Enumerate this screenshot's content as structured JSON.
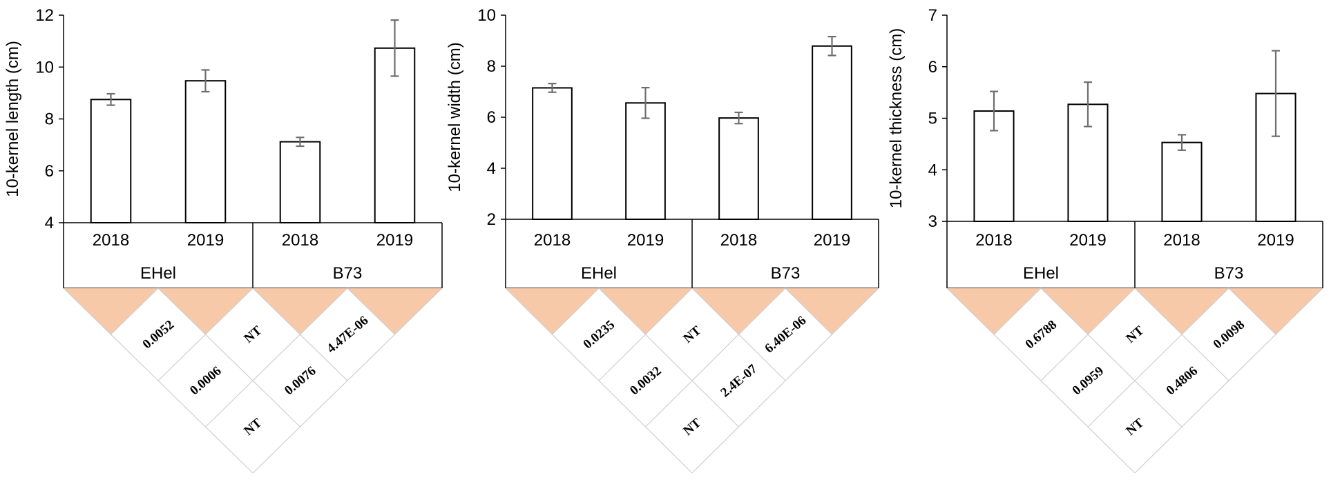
{
  "chart_data": [
    {
      "type": "bar",
      "title": "",
      "ylabel": "10-kernel length (cm)",
      "ylim": [
        4,
        12
      ],
      "yticks": [
        "4",
        "6",
        "8",
        "10",
        "12"
      ],
      "categories": [
        "2018",
        "2019",
        "2018",
        "2019"
      ],
      "groups": [
        "EHel",
        "B73"
      ],
      "values": [
        8.75,
        9.47,
        7.12,
        10.73
      ],
      "errors": [
        0.22,
        0.42,
        0.17,
        1.08
      ],
      "pairwise": {
        "adjacent": [
          "0.0052",
          "NT",
          "4.47E-06"
        ],
        "skip_one": [
          "0.0006",
          "0.0076"
        ],
        "skip_two": [
          "NT"
        ]
      }
    },
    {
      "type": "bar",
      "title": "",
      "ylabel": "10-kernel width (cm)",
      "ylim": [
        2,
        10
      ],
      "yticks": [
        "2",
        "4",
        "6",
        "8",
        "10"
      ],
      "categories": [
        "2018",
        "2019",
        "2018",
        "2019"
      ],
      "groups": [
        "EHel",
        "B73"
      ],
      "values": [
        7.15,
        6.56,
        5.97,
        8.79
      ],
      "errors": [
        0.17,
        0.6,
        0.22,
        0.37
      ],
      "pairwise": {
        "adjacent": [
          "0.0235",
          "NT",
          "6.40E-06"
        ],
        "skip_one": [
          "0.0032",
          "2.4E-07"
        ],
        "skip_two": [
          "NT"
        ]
      }
    },
    {
      "type": "bar",
      "title": "",
      "ylabel": "10-kernel thickness (cm)",
      "ylim": [
        3,
        7
      ],
      "yticks": [
        "3",
        "4",
        "5",
        "6",
        "7"
      ],
      "categories": [
        "2018",
        "2019",
        "2018",
        "2019"
      ],
      "groups": [
        "EHel",
        "B73"
      ],
      "values": [
        5.14,
        5.27,
        4.53,
        5.48
      ],
      "errors": [
        0.38,
        0.43,
        0.15,
        0.83
      ],
      "pairwise": {
        "adjacent": [
          "0.6788",
          "NT",
          "0.0098"
        ],
        "skip_one": [
          "0.0959",
          "0.4806"
        ],
        "skip_two": [
          "NT"
        ]
      }
    }
  ]
}
